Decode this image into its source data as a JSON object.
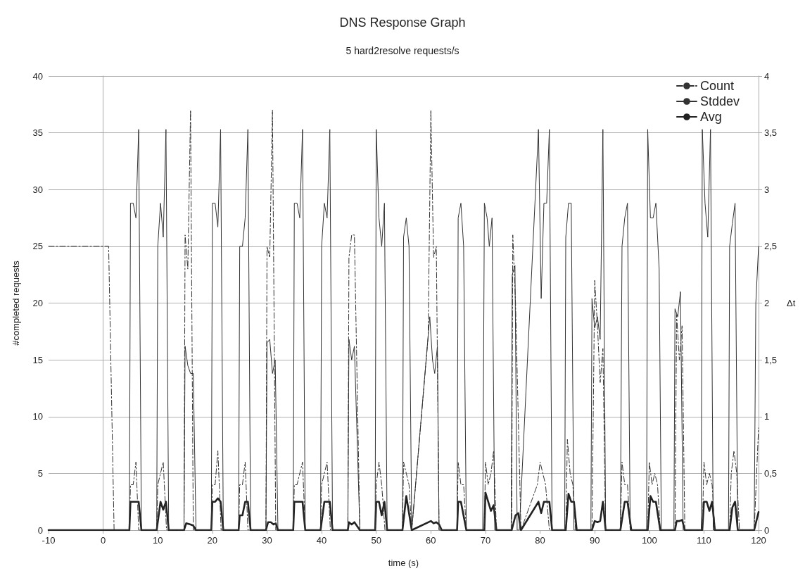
{
  "chart_data": {
    "type": "line",
    "title": "DNS Response Graph",
    "subtitle": "5 hard2resolve requests/s",
    "xlabel": "time (s)",
    "ylabel": "#completed requests",
    "y2label": "Δt",
    "xlim": [
      -10,
      120
    ],
    "xticks": [
      -10,
      0,
      10,
      20,
      30,
      40,
      50,
      60,
      70,
      80,
      90,
      100,
      110,
      120
    ],
    "ylim": [
      0,
      40
    ],
    "yticks": [
      0,
      5,
      10,
      15,
      20,
      25,
      30,
      35,
      40
    ],
    "y2lim": [
      0,
      4
    ],
    "y2ticks": [
      0,
      {
        "value": 0.5,
        "label": "0,5"
      },
      1,
      {
        "value": 1.5,
        "label": "1,5"
      },
      2,
      {
        "value": 2.5,
        "label": "2,5"
      },
      3,
      {
        "value": 3.5,
        "label": "3,5"
      },
      4
    ],
    "grid": "y",
    "legend": "top right",
    "marker": "none",
    "series": [
      {
        "name": "Count",
        "color": "#333333",
        "line_style": "dashed",
        "x": [
          -10,
          1,
          2,
          4.8,
          5,
          5.5,
          6,
          6.5,
          9.8,
          10,
          11,
          11.6,
          14.8,
          15,
          15.5,
          16,
          16.5,
          19.8,
          20,
          20.5,
          21,
          21.6,
          24.8,
          25,
          25.5,
          26,
          26.5,
          29.8,
          30,
          30.5,
          31,
          31.6,
          34.8,
          35,
          35.5,
          36.5,
          37,
          39.8,
          40,
          41,
          41.6,
          44.8,
          45,
          45.5,
          46,
          47,
          49.8,
          50,
          50.5,
          51,
          51.6,
          54.8,
          55,
          55.5,
          56,
          56.5,
          59.5,
          60,
          60.5,
          61,
          61.5,
          64.8,
          65,
          65.5,
          66,
          66.5,
          69.8,
          70,
          70.5,
          71,
          71.5,
          72,
          74.8,
          75,
          75.5,
          76,
          76.5,
          79.5,
          80,
          81,
          81.7,
          84.7,
          85,
          85.5,
          86,
          86.5,
          89.5,
          90,
          90.5,
          91,
          91.5,
          92,
          94.7,
          95,
          95.5,
          96,
          96.5,
          99.7,
          100,
          100.5,
          101,
          101.5,
          102,
          104.7,
          105,
          105.5,
          106,
          106.5,
          109.7,
          110,
          110.5,
          111,
          111.5,
          112,
          114.7,
          115,
          115.5,
          116,
          116.5,
          119.2,
          120
        ],
        "values": [
          25,
          25,
          0,
          0,
          4,
          4,
          6,
          0,
          0,
          4,
          6,
          0,
          0,
          26,
          23,
          37,
          0,
          0,
          4,
          4,
          7,
          0,
          0,
          4,
          4,
          6,
          0,
          0,
          25,
          24,
          37,
          0,
          0,
          4,
          4,
          6,
          0,
          0,
          4,
          6,
          0,
          0,
          24,
          26,
          26,
          0,
          0,
          4,
          6,
          4,
          0,
          0,
          6,
          5,
          4,
          0,
          17,
          37,
          24,
          25,
          0,
          0,
          6,
          4,
          4,
          0,
          0,
          6,
          4,
          5,
          7,
          0,
          0,
          26,
          20,
          10,
          0,
          4,
          6,
          4,
          0,
          0,
          8,
          5,
          4,
          0,
          0,
          22,
          18,
          13,
          16,
          0,
          0,
          6,
          4,
          4,
          0,
          0,
          6,
          4,
          5,
          4,
          0,
          0,
          19,
          15,
          18,
          0,
          0,
          6,
          4,
          5,
          4,
          0,
          0,
          5,
          7,
          5,
          0,
          0,
          9
        ]
      },
      {
        "name": "Stddev",
        "color": "#333333",
        "line_style": "solid",
        "axis": "y2",
        "x": [
          -10,
          4.8,
          5,
          5.5,
          6,
          6.5,
          7,
          9.8,
          10,
          10.5,
          11,
          11.5,
          12,
          14.8,
          15,
          15.5,
          16,
          16.5,
          17,
          19.8,
          20,
          20.5,
          21,
          21.5,
          22,
          24.8,
          25,
          25.5,
          26,
          26.5,
          27,
          29.8,
          30,
          30.5,
          31,
          31.5,
          32,
          34.8,
          35,
          35.5,
          36,
          36.5,
          37,
          39.8,
          40,
          40.5,
          41,
          41.5,
          42,
          44.8,
          45,
          45.5,
          46,
          47,
          49.8,
          50,
          50.5,
          51,
          51.5,
          52,
          54.8,
          55,
          55.5,
          56,
          56.5,
          59.8,
          60.3,
          60.7,
          61.2,
          61.5,
          64.8,
          65,
          65.5,
          66,
          66.5,
          69.5,
          69.8,
          70.3,
          70.7,
          71.2,
          71.7,
          74.7,
          74.9,
          75.4,
          75.8,
          76.2,
          79.7,
          80.2,
          80.7,
          81.2,
          81.7,
          82.2,
          84.5,
          84.7,
          85.2,
          85.7,
          86.2,
          89.3,
          89.5,
          90,
          90.5,
          91,
          91.5,
          92,
          94.7,
          95,
          95.5,
          96,
          96.5,
          99.5,
          99.7,
          100.2,
          100.7,
          101.2,
          101.8,
          102.2,
          104.5,
          104.7,
          105.2,
          105.7,
          106.2,
          109.5,
          109.7,
          110.2,
          110.7,
          111.2,
          111.7,
          114.5,
          114.7,
          115.2,
          115.7,
          116.2,
          119.2,
          119.5,
          120
        ],
        "values": [
          0,
          0,
          2.88,
          2.88,
          2.75,
          3.53,
          0,
          0,
          2.5,
          2.88,
          2.58,
          3.53,
          0,
          0,
          1.62,
          1.45,
          1.38,
          1.38,
          0,
          0,
          2.88,
          2.88,
          2.67,
          3.53,
          0,
          0,
          2.5,
          2.5,
          2.75,
          3.53,
          0,
          0,
          1.65,
          1.68,
          1.38,
          1.5,
          0,
          0,
          2.88,
          2.88,
          2.75,
          3.53,
          0,
          0,
          2.5,
          2.88,
          2.75,
          3.53,
          0,
          0,
          1.68,
          1.5,
          1.62,
          0,
          0,
          3.53,
          2.75,
          2.5,
          2.88,
          0,
          0,
          2.58,
          2.75,
          2.5,
          0,
          1.88,
          1.5,
          1.38,
          1.62,
          0,
          0,
          2.75,
          2.88,
          2.5,
          0,
          0,
          2.88,
          2.75,
          2.5,
          2.75,
          0,
          0,
          2.25,
          2.33,
          0,
          0,
          3.53,
          2.04,
          2.88,
          2.88,
          3.53,
          0,
          0,
          2.58,
          2.88,
          2.88,
          0,
          0,
          2.04,
          1.78,
          1.88,
          1.68,
          3.53,
          0,
          0,
          2.5,
          2.75,
          2.88,
          0,
          0,
          3.53,
          2.75,
          2.75,
          2.88,
          2.3,
          0,
          0,
          1.95,
          1.88,
          2.1,
          0,
          0,
          3.53,
          2.88,
          2.58,
          3.53,
          0,
          0,
          2.5,
          2.7,
          2.88,
          0,
          0,
          2,
          2.5
        ]
      },
      {
        "name": "Avg",
        "color": "#222222",
        "line_style": "solid",
        "axis": "y2",
        "x": [
          -10,
          4.8,
          5,
          6,
          6.5,
          7,
          9.8,
          10.5,
          11,
          11.5,
          12,
          14.8,
          15.2,
          16,
          16.5,
          17,
          19.8,
          20,
          20.5,
          21,
          21.5,
          22,
          24.8,
          25,
          25.5,
          26,
          26.5,
          27,
          29.8,
          30.2,
          30.7,
          31.2,
          31.6,
          32,
          34.8,
          35,
          36,
          36.5,
          37,
          39.8,
          40.5,
          41.5,
          42,
          44.8,
          45,
          45.5,
          46,
          47,
          49.8,
          50,
          50.5,
          51,
          51.5,
          52,
          54.8,
          55.5,
          56.5,
          60,
          60.5,
          61,
          61.5,
          62,
          64.8,
          65,
          65.5,
          66.5,
          69.8,
          70,
          70.5,
          71,
          71.5,
          72,
          74.8,
          75.5,
          76,
          76.5,
          79.7,
          80.2,
          80.7,
          81.7,
          82.2,
          84.7,
          85.2,
          85.7,
          86.2,
          86.7,
          89.5,
          90,
          90.5,
          91,
          91.5,
          92,
          94.7,
          95.5,
          96,
          96.7,
          99.7,
          100.2,
          100.7,
          101.2,
          102,
          104.7,
          105,
          105.5,
          106,
          106.5,
          109.7,
          110,
          110.5,
          111,
          111.5,
          112,
          114.7,
          115.2,
          115.7,
          116.2,
          119.2,
          120
        ],
        "values": [
          0,
          0,
          0.25,
          0.25,
          0.25,
          0,
          0,
          0.25,
          0.18,
          0.25,
          0,
          0,
          0.06,
          0.05,
          0.04,
          0,
          0,
          0.25,
          0.25,
          0.28,
          0.25,
          0,
          0,
          0.13,
          0.13,
          0.25,
          0.25,
          0,
          0,
          0.07,
          0.07,
          0.05,
          0.06,
          0,
          0,
          0.25,
          0.25,
          0.25,
          0,
          0,
          0.25,
          0.25,
          0,
          0,
          0.07,
          0.05,
          0.07,
          0,
          0,
          0.25,
          0.25,
          0.13,
          0.25,
          0,
          0,
          0.3,
          0,
          0.08,
          0.06,
          0.07,
          0.05,
          0,
          0,
          0.25,
          0.25,
          0,
          0,
          0.33,
          0.25,
          0.17,
          0.22,
          0,
          0,
          0.13,
          0.15,
          0,
          0.25,
          0.15,
          0.25,
          0.25,
          0,
          0,
          0.32,
          0.25,
          0.25,
          0,
          0,
          0.08,
          0.07,
          0.08,
          0.25,
          0,
          0,
          0.25,
          0.25,
          0,
          0,
          0.3,
          0.25,
          0.25,
          0,
          0,
          0.08,
          0.08,
          0.09,
          0,
          0,
          0.25,
          0.25,
          0.17,
          0.25,
          0,
          0,
          0.2,
          0.25,
          0,
          0,
          0.16
        ]
      }
    ]
  }
}
